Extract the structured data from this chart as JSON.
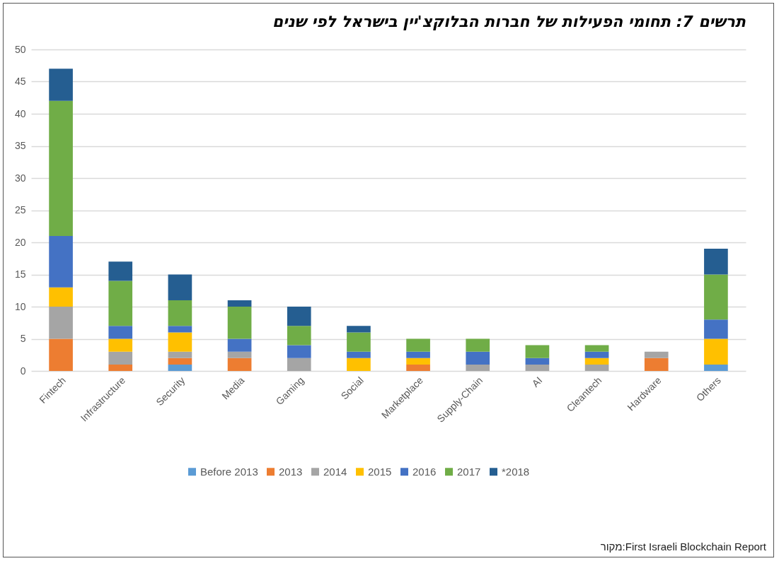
{
  "chart_data": {
    "type": "bar",
    "title": "תרשים 7: תחומי הפעילות של חברות הבלוקצ'יין בישראל לפי שנים",
    "stacked": true,
    "legend": "bottom",
    "grid": "y",
    "categories": [
      "Fintech",
      "Infrastructure",
      "Security",
      "Media",
      "Gaming",
      "Social",
      "Marketplace",
      "Supply-Chain",
      "AI",
      "Cleantech",
      "Hardware",
      "Others"
    ],
    "series": [
      {
        "name": "Before 2013",
        "color": "#5b9bd5",
        "values": [
          0,
          0,
          1,
          0,
          0,
          0,
          0,
          0,
          0,
          0,
          0,
          1
        ]
      },
      {
        "name": "2013",
        "color": "#ed7d31",
        "values": [
          5,
          1,
          1,
          2,
          0,
          0,
          1,
          0,
          0,
          0,
          2,
          0
        ]
      },
      {
        "name": "2014",
        "color": "#a5a5a5",
        "values": [
          5,
          2,
          1,
          1,
          2,
          0,
          0,
          1,
          1,
          1,
          1,
          0
        ]
      },
      {
        "name": "2015",
        "color": "#ffc000",
        "values": [
          3,
          2,
          3,
          0,
          0,
          2,
          1,
          0,
          0,
          1,
          0,
          4
        ]
      },
      {
        "name": "2016",
        "color": "#4472c4",
        "values": [
          8,
          2,
          1,
          2,
          2,
          1,
          1,
          2,
          1,
          1,
          0,
          3
        ]
      },
      {
        "name": "2017",
        "color": "#70ad47",
        "values": [
          21,
          7,
          4,
          5,
          3,
          3,
          2,
          2,
          2,
          1,
          0,
          7
        ]
      },
      {
        "name": "*2018",
        "color": "#255e91",
        "values": [
          5,
          3,
          4,
          1,
          3,
          1,
          0,
          0,
          0,
          0,
          0,
          4
        ]
      }
    ],
    "ylim": [
      0,
      50
    ],
    "yticks": [
      0,
      5,
      10,
      15,
      20,
      25,
      30,
      35,
      40,
      45,
      50
    ],
    "annotations": [
      "מקור:First Israeli Blockchain Report"
    ]
  }
}
